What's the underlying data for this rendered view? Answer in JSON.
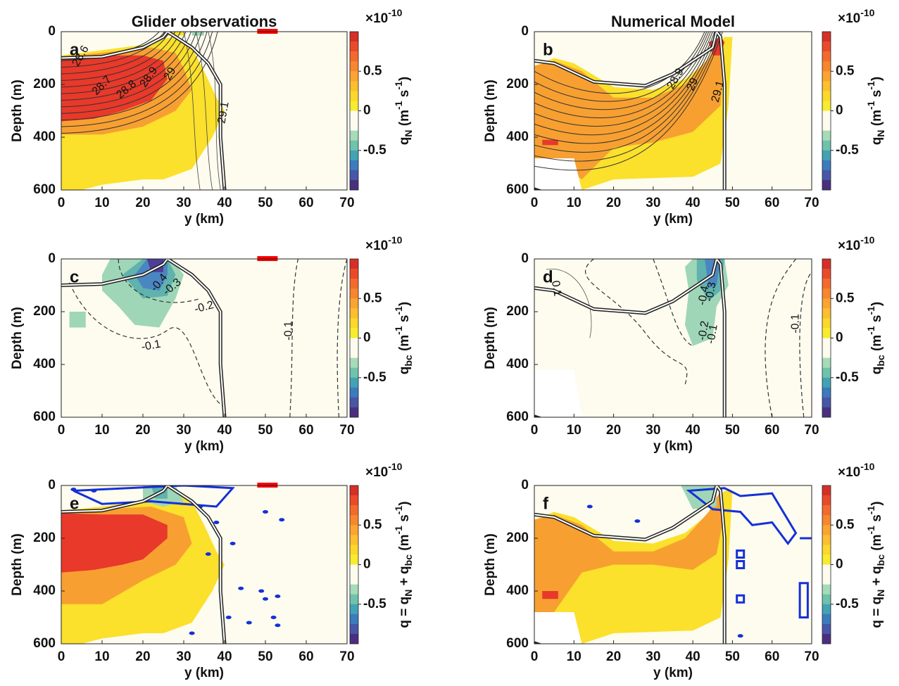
{
  "chart_data": [
    {
      "type": "heatmap",
      "title": "Glider observations",
      "panel_label": "a",
      "xlabel": "y (km)",
      "ylabel": "Depth (m)",
      "xlim": [
        0,
        70
      ],
      "xticks": [
        0,
        10,
        20,
        30,
        40,
        50,
        60,
        70
      ],
      "ylim": [
        0,
        600
      ],
      "yticks": [
        0,
        200,
        400,
        600
      ],
      "clim": [
        -1,
        1
      ],
      "cticks": [
        -0.5,
        0,
        0.5
      ],
      "colormap": [
        "#d62f27",
        "#ea4a2a",
        "#f36b2c",
        "#f8862e",
        "#fba431",
        "#fcbf2f",
        "#fbd82b",
        "#f8ec2e",
        "#fcfbee",
        "#fcfbee",
        "#a6dbb9",
        "#6fc3ab",
        "#43a2b4",
        "#3c7bbd",
        "#4856a7",
        "#4a2f7f"
      ],
      "multiplier": [
        {
          "text": "×10"
        },
        {
          "text": "-10",
          "shift": "sup"
        }
      ],
      "colorbar_label": [
        {
          "text": "q"
        },
        {
          "text": "N",
          "shift": "sub"
        },
        {
          "text": " (m"
        },
        {
          "text": "-1",
          "shift": "sup"
        },
        {
          "text": " s"
        },
        {
          "text": "-1",
          "shift": "sup"
        },
        {
          "text": ")"
        }
      ],
      "annotations": [
        {
          "text": "28.6"
        },
        {
          "text": "28.7"
        },
        {
          "text": "28.8"
        },
        {
          "text": "28.9"
        },
        {
          "text": "29"
        },
        {
          "text": "29.1"
        }
      ]
    },
    {
      "type": "heatmap",
      "title": "Numerical Model",
      "panel_label": "b",
      "xlabel": "y (km)",
      "ylabel": "Depth (m)",
      "xlim": [
        0,
        70
      ],
      "xticks": [
        0,
        10,
        20,
        30,
        40,
        50,
        60,
        70
      ],
      "ylim": [
        0,
        600
      ],
      "yticks": [
        0,
        200,
        400,
        600
      ],
      "clim": [
        -1,
        1
      ],
      "cticks": [
        -0.5,
        0,
        0.5
      ],
      "colormap": [
        "#d62f27",
        "#ea4a2a",
        "#f36b2c",
        "#f8862e",
        "#fba431",
        "#fcbf2f",
        "#fbd82b",
        "#f8ec2e",
        "#fcfbee",
        "#fcfbee",
        "#a6dbb9",
        "#6fc3ab",
        "#43a2b4",
        "#3c7bbd",
        "#4856a7",
        "#4a2f7f"
      ],
      "multiplier": [
        {
          "text": "×10"
        },
        {
          "text": "-10",
          "shift": "sup"
        }
      ],
      "colorbar_label": [
        {
          "text": "q"
        },
        {
          "text": "N",
          "shift": "sub"
        },
        {
          "text": " (m"
        },
        {
          "text": "-1",
          "shift": "sup"
        },
        {
          "text": " s"
        },
        {
          "text": "-1",
          "shift": "sup"
        },
        {
          "text": ")"
        }
      ],
      "annotations": [
        {
          "text": "28.9"
        },
        {
          "text": "29"
        },
        {
          "text": "29.1"
        }
      ]
    },
    {
      "type": "heatmap",
      "panel_label": "c",
      "xlabel": "y (km)",
      "ylabel": "Depth (m)",
      "xlim": [
        0,
        70
      ],
      "xticks": [
        0,
        10,
        20,
        30,
        40,
        50,
        60,
        70
      ],
      "ylim": [
        0,
        600
      ],
      "yticks": [
        0,
        200,
        400,
        600
      ],
      "clim": [
        -1,
        1
      ],
      "cticks": [
        -0.5,
        0,
        0.5
      ],
      "colormap": [
        "#d62f27",
        "#ea4a2a",
        "#f36b2c",
        "#f8862e",
        "#fba431",
        "#fcbf2f",
        "#fbd82b",
        "#f8ec2e",
        "#fcfbee",
        "#fcfbee",
        "#a6dbb9",
        "#6fc3ab",
        "#43a2b4",
        "#3c7bbd",
        "#4856a7",
        "#4a2f7f"
      ],
      "multiplier": [
        {
          "text": "×10"
        },
        {
          "text": "-10",
          "shift": "sup"
        }
      ],
      "colorbar_label": [
        {
          "text": "q"
        },
        {
          "text": "bc",
          "shift": "sub"
        },
        {
          "text": " (m"
        },
        {
          "text": "-1",
          "shift": "sup"
        },
        {
          "text": " s"
        },
        {
          "text": "-1",
          "shift": "sup"
        },
        {
          "text": ")"
        }
      ],
      "annotations": [
        {
          "text": "-0.4"
        },
        {
          "text": "-0.3"
        },
        {
          "text": "-0.2"
        },
        {
          "text": "-0.1"
        },
        {
          "text": "-0.1"
        }
      ]
    },
    {
      "type": "heatmap",
      "panel_label": "d",
      "xlabel": "y (km)",
      "ylabel": "Depth (m)",
      "xlim": [
        0,
        70
      ],
      "xticks": [
        0,
        10,
        20,
        30,
        40,
        50,
        60,
        70
      ],
      "ylim": [
        0,
        600
      ],
      "yticks": [
        0,
        200,
        400,
        600
      ],
      "clim": [
        -1,
        1
      ],
      "cticks": [
        -0.5,
        0,
        0.5
      ],
      "colormap": [
        "#d62f27",
        "#ea4a2a",
        "#f36b2c",
        "#f8862e",
        "#fba431",
        "#fcbf2f",
        "#fbd82b",
        "#f8ec2e",
        "#fcfbee",
        "#fcfbee",
        "#a6dbb9",
        "#6fc3ab",
        "#43a2b4",
        "#3c7bbd",
        "#4856a7",
        "#4a2f7f"
      ],
      "multiplier": [
        {
          "text": "×10"
        },
        {
          "text": "-10",
          "shift": "sup"
        }
      ],
      "colorbar_label": [
        {
          "text": "q"
        },
        {
          "text": "bc",
          "shift": "sub"
        },
        {
          "text": " (m"
        },
        {
          "text": "-1",
          "shift": "sup"
        },
        {
          "text": " s"
        },
        {
          "text": "-1",
          "shift": "sup"
        },
        {
          "text": ")"
        }
      ],
      "annotations": [
        {
          "text": "0.1"
        },
        {
          "text": "-0.4"
        },
        {
          "text": "-0.3"
        },
        {
          "text": "-0.2"
        },
        {
          "text": "-0.1"
        },
        {
          "text": "-0.1"
        }
      ]
    },
    {
      "type": "heatmap",
      "panel_label": "e",
      "xlabel": "y (km)",
      "ylabel": "Depth (m)",
      "xlim": [
        0,
        70
      ],
      "xticks": [
        0,
        10,
        20,
        30,
        40,
        50,
        60,
        70
      ],
      "ylim": [
        0,
        600
      ],
      "yticks": [
        0,
        200,
        400,
        600
      ],
      "clim": [
        -1,
        1
      ],
      "cticks": [
        -0.5,
        0,
        0.5
      ],
      "colormap": [
        "#d62f27",
        "#ea4a2a",
        "#f36b2c",
        "#f8862e",
        "#fba431",
        "#fcbf2f",
        "#fbd82b",
        "#f8ec2e",
        "#fcfbee",
        "#fcfbee",
        "#a6dbb9",
        "#6fc3ab",
        "#43a2b4",
        "#3c7bbd",
        "#4856a7",
        "#4a2f7f"
      ],
      "multiplier": [
        {
          "text": "×10"
        },
        {
          "text": "-10",
          "shift": "sup"
        }
      ],
      "colorbar_label": [
        {
          "text": "q = q"
        },
        {
          "text": "N",
          "shift": "sub"
        },
        {
          "text": " + q"
        },
        {
          "text": "bc",
          "shift": "sub"
        },
        {
          "text": " (m"
        },
        {
          "text": "-1",
          "shift": "sup"
        },
        {
          "text": " s"
        },
        {
          "text": "-1",
          "shift": "sup"
        },
        {
          "text": ")"
        }
      ],
      "annotations": []
    },
    {
      "type": "heatmap",
      "panel_label": "f",
      "xlabel": "y (km)",
      "ylabel": "Depth (m)",
      "xlim": [
        0,
        70
      ],
      "xticks": [
        0,
        10,
        20,
        30,
        40,
        50,
        60,
        70
      ],
      "ylim": [
        0,
        600
      ],
      "yticks": [
        0,
        200,
        400,
        600
      ],
      "clim": [
        -1,
        1
      ],
      "cticks": [
        -0.5,
        0,
        0.5
      ],
      "colormap": [
        "#d62f27",
        "#ea4a2a",
        "#f36b2c",
        "#f8862e",
        "#fba431",
        "#fcbf2f",
        "#fbd82b",
        "#f8ec2e",
        "#fcfbee",
        "#fcfbee",
        "#a6dbb9",
        "#6fc3ab",
        "#43a2b4",
        "#3c7bbd",
        "#4856a7",
        "#4a2f7f"
      ],
      "multiplier": [
        {
          "text": "×10"
        },
        {
          "text": "-10",
          "shift": "sup"
        }
      ],
      "colorbar_label": [
        {
          "text": "q = q"
        },
        {
          "text": "N",
          "shift": "sub"
        },
        {
          "text": " + q"
        },
        {
          "text": "bc",
          "shift": "sub"
        },
        {
          "text": " (m"
        },
        {
          "text": "-1",
          "shift": "sup"
        },
        {
          "text": " s"
        },
        {
          "text": "-1",
          "shift": "sup"
        },
        {
          "text": ")"
        }
      ],
      "annotations": []
    }
  ]
}
